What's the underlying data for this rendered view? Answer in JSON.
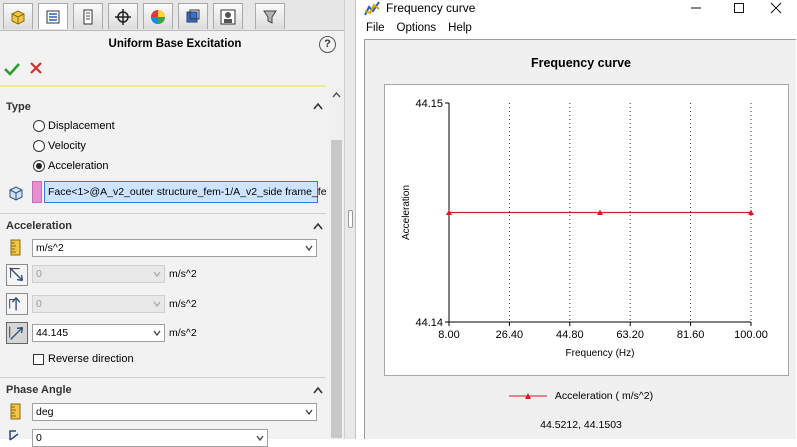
{
  "property_manager": {
    "title": "Uniform Base Excitation",
    "help_label": "?",
    "tabs": [
      "property-manager",
      "feature-manager",
      "configuration-manager",
      "dimxpert-manager",
      "display-manager",
      "simulation",
      "hole-wizard",
      "appearance"
    ],
    "type_section": {
      "header": "Type",
      "options": [
        "Displacement",
        "Velocity",
        "Acceleration"
      ],
      "selected": "Acceleration",
      "face_selection": "Face<1>@A_v2_outer structure_fem-1/A_v2_side frame_fe"
    },
    "acceleration_section": {
      "header": "Acceleration",
      "units": "m/s^2",
      "direction_1": {
        "value": "0",
        "unit": "m/s^2"
      },
      "direction_2": {
        "value": "0",
        "unit": "m/s^2"
      },
      "direction_3": {
        "value": "44.145",
        "unit": "m/s^2"
      },
      "reverse_direction_label": "Reverse direction"
    },
    "phase_section": {
      "header": "Phase Angle",
      "units": "deg",
      "value": "0"
    }
  },
  "frequency_window": {
    "title": "Frequency curve",
    "menu": [
      "File",
      "Options",
      "Help"
    ],
    "readout": "44.5212, 44.1503"
  },
  "chart_data": {
    "type": "line",
    "title": "Frequency curve",
    "xlabel": "Frequency (Hz)",
    "ylabel": "Acceleration",
    "xlim": [
      8.0,
      100.0
    ],
    "ylim": [
      44.14,
      44.15
    ],
    "x_ticks": [
      "8.00",
      "26.40",
      "44.80",
      "63.20",
      "81.60",
      "100.00"
    ],
    "y_ticks": [
      "44.15",
      "44.14"
    ],
    "grid": "vertical dotted",
    "legend_position": "bottom",
    "series": [
      {
        "name": "Acceleration ( m/s^2)",
        "color": "#d42020",
        "x": [
          8.0,
          54.0,
          100.0
        ],
        "y": [
          44.145,
          44.145,
          44.145
        ]
      }
    ]
  },
  "colors": {
    "accent": "#3a7bd5",
    "series": "#d42020",
    "face_tag": "#e58fcf"
  }
}
